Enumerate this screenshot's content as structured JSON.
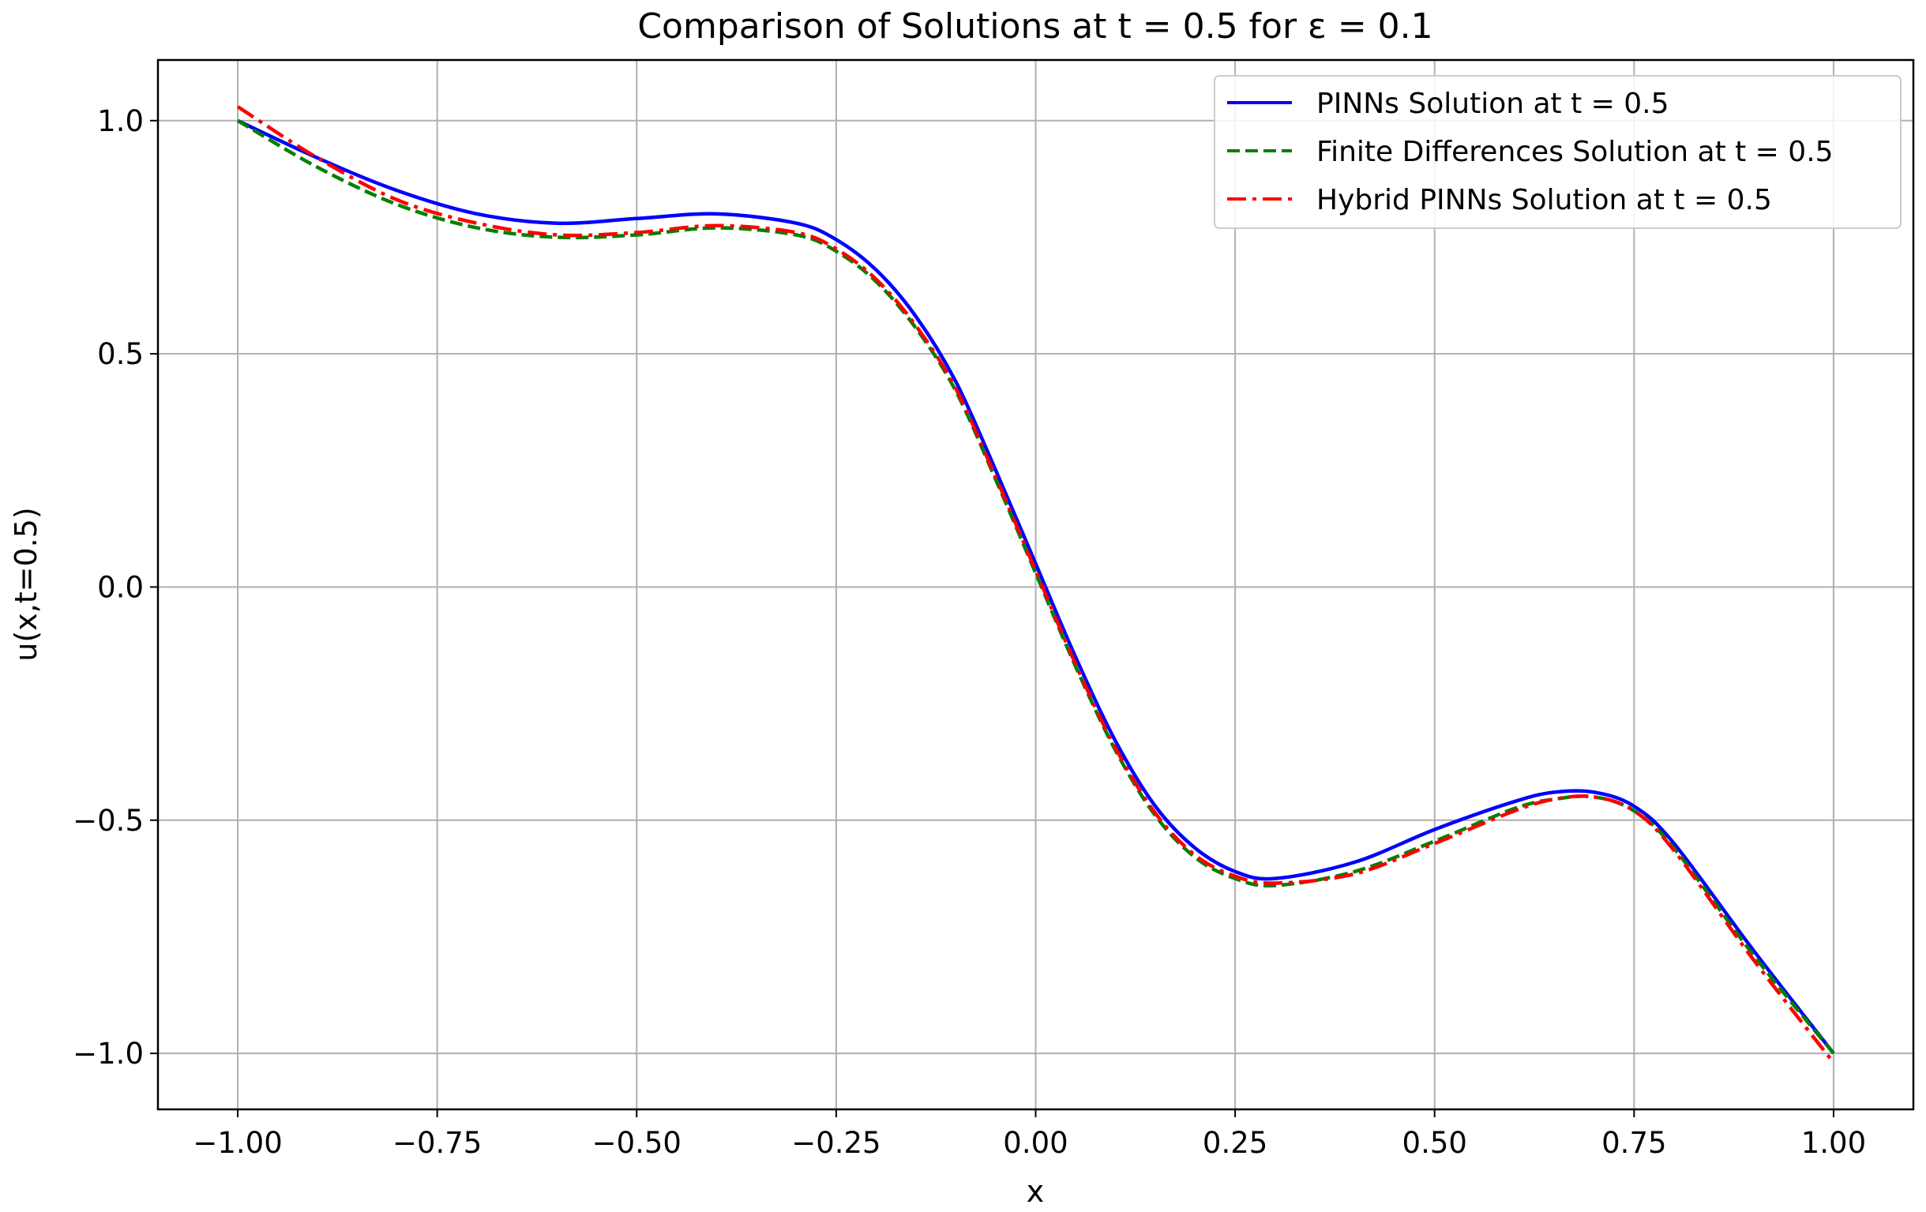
{
  "chart_data": {
    "type": "line",
    "title": "Comparison of Solutions at t = 0.5 for ε = 0.1",
    "xlabel": "x",
    "ylabel": "u(x,t=0.5)",
    "xlim": [
      -1.1,
      1.1
    ],
    "ylim": [
      -1.12,
      1.13
    ],
    "x_ticks": [
      -1.0,
      -0.75,
      -0.5,
      -0.25,
      0.0,
      0.25,
      0.5,
      0.75,
      1.0
    ],
    "x_tick_labels": [
      "−1.00",
      "−0.75",
      "−0.50",
      "−0.25",
      "0.00",
      "0.25",
      "0.50",
      "0.75",
      "1.00"
    ],
    "y_ticks": [
      1.0,
      0.5,
      0.0,
      -0.5,
      -1.0
    ],
    "y_tick_labels": [
      "1.0",
      "0.5",
      "0.0",
      "−0.5",
      "−1.0"
    ],
    "grid": true,
    "legend_position": "top-right",
    "series": [
      {
        "name": "PINNs Solution at t = 0.5",
        "color": "#0000ff",
        "style": "solid",
        "x": [
          -1.0,
          -0.9,
          -0.8,
          -0.7,
          -0.6,
          -0.5,
          -0.4,
          -0.3,
          -0.25,
          -0.2,
          -0.15,
          -0.1,
          -0.05,
          0.0,
          0.05,
          0.1,
          0.15,
          0.2,
          0.25,
          0.3,
          0.4,
          0.5,
          0.6,
          0.65,
          0.7,
          0.75,
          0.8,
          0.9,
          1.0
        ],
        "y": [
          1.0,
          0.92,
          0.85,
          0.8,
          0.78,
          0.79,
          0.8,
          0.78,
          0.745,
          0.68,
          0.58,
          0.44,
          0.25,
          0.05,
          -0.15,
          -0.33,
          -0.47,
          -0.56,
          -0.61,
          -0.625,
          -0.59,
          -0.52,
          -0.46,
          -0.44,
          -0.44,
          -0.47,
          -0.55,
          -0.78,
          -1.0
        ]
      },
      {
        "name": "Finite Differences Solution at t = 0.5",
        "color": "#008000",
        "style": "dashed",
        "x": [
          -1.0,
          -0.9,
          -0.8,
          -0.7,
          -0.6,
          -0.5,
          -0.4,
          -0.3,
          -0.25,
          -0.2,
          -0.15,
          -0.1,
          -0.05,
          0.0,
          0.05,
          0.1,
          0.15,
          0.2,
          0.25,
          0.3,
          0.4,
          0.5,
          0.6,
          0.65,
          0.7,
          0.75,
          0.8,
          0.9,
          1.0
        ],
        "y": [
          1.0,
          0.9,
          0.82,
          0.77,
          0.75,
          0.755,
          0.77,
          0.755,
          0.72,
          0.655,
          0.555,
          0.42,
          0.23,
          0.03,
          -0.17,
          -0.35,
          -0.49,
          -0.58,
          -0.625,
          -0.64,
          -0.61,
          -0.545,
          -0.475,
          -0.455,
          -0.45,
          -0.48,
          -0.56,
          -0.79,
          -1.0
        ]
      },
      {
        "name": "Hybrid PINNs Solution at t = 0.5",
        "color": "#ff0000",
        "style": "dashdot",
        "x": [
          -1.0,
          -0.9,
          -0.8,
          -0.7,
          -0.6,
          -0.5,
          -0.4,
          -0.3,
          -0.25,
          -0.2,
          -0.15,
          -0.1,
          -0.05,
          0.0,
          0.05,
          0.1,
          0.15,
          0.2,
          0.25,
          0.3,
          0.4,
          0.5,
          0.6,
          0.65,
          0.7,
          0.75,
          0.8,
          0.9,
          1.0
        ],
        "y": [
          1.03,
          0.92,
          0.83,
          0.78,
          0.755,
          0.76,
          0.775,
          0.76,
          0.725,
          0.66,
          0.56,
          0.425,
          0.235,
          0.035,
          -0.165,
          -0.345,
          -0.485,
          -0.575,
          -0.62,
          -0.635,
          -0.615,
          -0.55,
          -0.48,
          -0.455,
          -0.45,
          -0.48,
          -0.565,
          -0.8,
          -1.02
        ]
      }
    ]
  }
}
